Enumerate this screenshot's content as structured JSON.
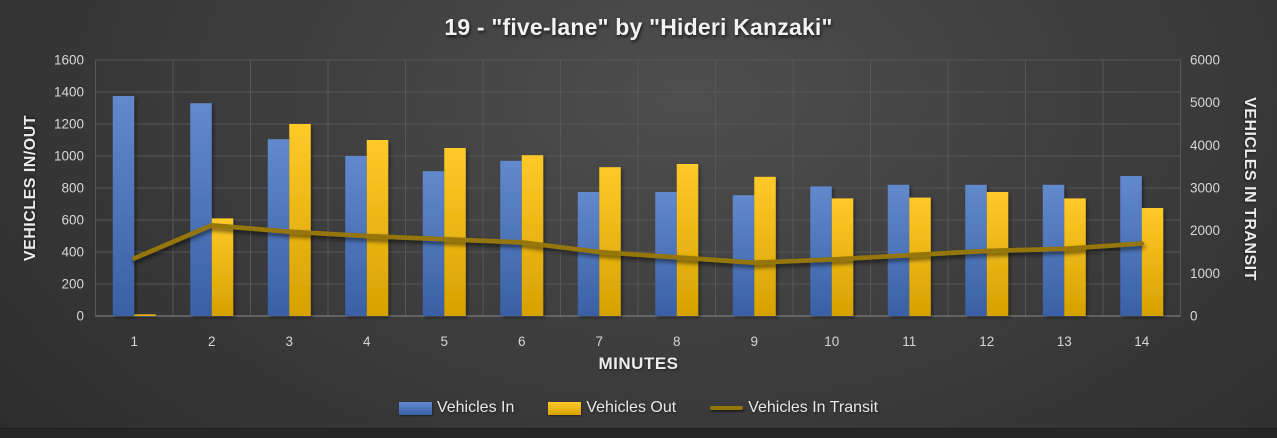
{
  "title": "19 - \"five-lane\" by \"Hideri Kanzaki\"",
  "left_axis": {
    "title": "VEHICLES IN/OUT",
    "ticks": [
      "0",
      "200",
      "400",
      "600",
      "800",
      "1000",
      "1200",
      "1400",
      "1600"
    ]
  },
  "right_axis": {
    "title": "VEHICLES IN TRANSIT",
    "ticks": [
      "0",
      "1000",
      "2000",
      "3000",
      "4000",
      "5000",
      "6000"
    ]
  },
  "x_axis": {
    "title": "MINUTES",
    "categories": [
      "1",
      "2",
      "3",
      "4",
      "5",
      "6",
      "7",
      "8",
      "9",
      "10",
      "11",
      "12",
      "13",
      "14"
    ]
  },
  "legend": [
    {
      "label": "Vehicles In",
      "color": "#4472C4",
      "swatch": "bar"
    },
    {
      "label": "Vehicles Out",
      "color": "#FFC000",
      "swatch": "bar"
    },
    {
      "label": "Vehicles In Transit",
      "color": "#94760A",
      "swatch": "line"
    }
  ],
  "colors": {
    "vehicles_in": "#4472C4",
    "vehicles_out": "#FFC000",
    "transit_line": "#94760A",
    "gridline": "#575757",
    "axis_line": "#7a7a7a",
    "tick_text": "#d6d6d6"
  },
  "chart_data": {
    "type": "bar",
    "subtype": "grouped bars with secondary-axis line",
    "title": "19 - \"five-lane\" by \"Hideri Kanzaki\"",
    "xlabel": "MINUTES",
    "ylabel_left": "VEHICLES IN/OUT",
    "ylabel_right": "VEHICLES IN TRANSIT",
    "categories": [
      1,
      2,
      3,
      4,
      5,
      6,
      7,
      8,
      9,
      10,
      11,
      12,
      13,
      14
    ],
    "series": [
      {
        "name": "Vehicles In",
        "type": "bar",
        "axis": "left",
        "values": [
          1375,
          1330,
          1105,
          1000,
          905,
          970,
          775,
          775,
          755,
          810,
          820,
          820,
          820,
          875
        ]
      },
      {
        "name": "Vehicles Out",
        "type": "bar",
        "axis": "left",
        "values": [
          10,
          610,
          1200,
          1100,
          1050,
          1005,
          930,
          950,
          870,
          735,
          740,
          775,
          735,
          675
        ]
      },
      {
        "name": "Vehicles In Transit",
        "type": "line",
        "axis": "right",
        "values": [
          1350,
          2125,
          1975,
          1875,
          1800,
          1725,
          1500,
          1375,
          1250,
          1325,
          1425,
          1525,
          1575,
          1700
        ]
      }
    ],
    "left_ylim": [
      0,
      1600
    ],
    "left_step": 200,
    "right_ylim": [
      0,
      6000
    ],
    "right_step": 1000,
    "grid": true,
    "legend_position": "bottom"
  }
}
